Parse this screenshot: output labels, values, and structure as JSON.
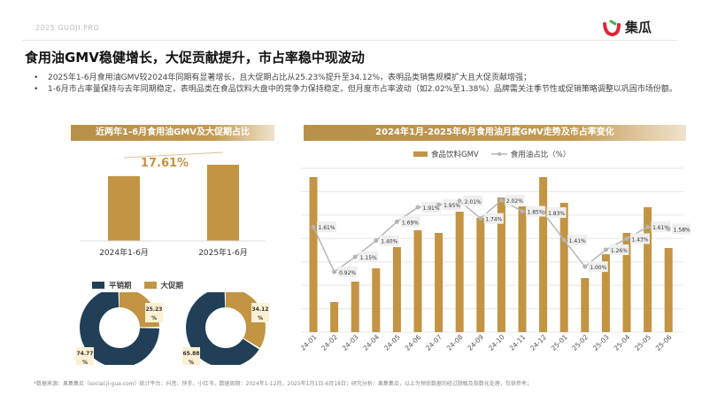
{
  "header": {
    "brand_text": "2025 GUOJI.PRO",
    "logo_text": "集瓜",
    "title": "食用油GMV稳健增长，大促贡献提升，市占率稳中现波动"
  },
  "bullets": [
    "2025年1-6月食用油GMV较2024年同期有显著增长，且大促期占比从25.23%提升至34.12%，表明品类销售规模扩大且大促贡献增强；",
    "1-6月市占率量保持与去年同期稳定，表明品类在食品饮料大盘中的竞争力保持稳定，但月度市占率波动（如2.02%至1.38%）品牌需关注季节性或促销策略调整以巩固市场份额。"
  ],
  "footer": "*数据来源：果集集瓜（social.ji-gua.com）统计平台：抖音、快手、小红书，数据周期：2024年1-12月，2025年1月1日-6月18日；研究分析：果集集瓜，以上为预估数据均经过脱敏及指数化处理，仅供参考；",
  "colors": {
    "gold": "#c29443",
    "navy": "#223f58",
    "line": "#b5b5b5",
    "label_bg": "#fdf0d3"
  },
  "chart_data": [
    {
      "type": "bar",
      "title": "近两年1-6月食用油GMV及大促期占比",
      "categories": [
        "2024年1-6月",
        "2025年1-6月"
      ],
      "values": [
        100,
        117.61
      ],
      "annotation": "17.61%"
    },
    {
      "type": "pie",
      "subtype": "donut",
      "legend": [
        "平销期",
        "大促期"
      ],
      "series": [
        {
          "category": "2024年1-6月",
          "values": [
            74.77,
            25.23
          ],
          "labels": [
            "74.77%",
            "25.23%"
          ]
        },
        {
          "category": "2025年1-6月",
          "values": [
            65.88,
            34.12
          ],
          "labels": [
            "65.88%",
            "34.12%"
          ]
        }
      ]
    },
    {
      "type": "bar+line",
      "title": "2024年1月-2025年6月食用油月度GMV走势及市占率变化",
      "legend": [
        "食品饮料GMV",
        "食用油占比（%）"
      ],
      "legend_position": "top",
      "grid": true,
      "categories": [
        "24-01",
        "24-02",
        "24-03",
        "24-04",
        "24-05",
        "24-06",
        "24-07",
        "24-08",
        "24-09",
        "24-10",
        "24-11",
        "24-12",
        "25-01",
        "25-02",
        "25-03",
        "25-04",
        "25-05",
        "25-06"
      ],
      "series": [
        {
          "name": "食品饮料GMV",
          "type": "bar",
          "values": [
            175,
            34,
            57,
            72,
            96,
            115,
            112,
            136,
            129,
            152,
            142,
            175,
            146,
            61,
            88,
            112,
            141,
            95
          ]
        },
        {
          "name": "食用油占比（%）",
          "type": "line",
          "values": [
            1.61,
            0.92,
            1.15,
            1.4,
            1.69,
            1.91,
            1.95,
            2.01,
            1.74,
            2.02,
            1.85,
            1.83,
            1.41,
            1.0,
            1.26,
            1.43,
            1.61,
            1.58
          ],
          "labels": [
            "1.61%",
            "0.92%",
            "1.15%",
            "1.40%",
            "1.69%",
            "1.91%",
            "1.95%",
            "2.01%",
            "1.74%",
            "2.02%",
            "1.85%",
            "1.83%",
            "1.41%",
            "1.00%",
            "1.26%",
            "1.43%",
            "1.61%",
            "1.58%"
          ]
        }
      ]
    }
  ]
}
